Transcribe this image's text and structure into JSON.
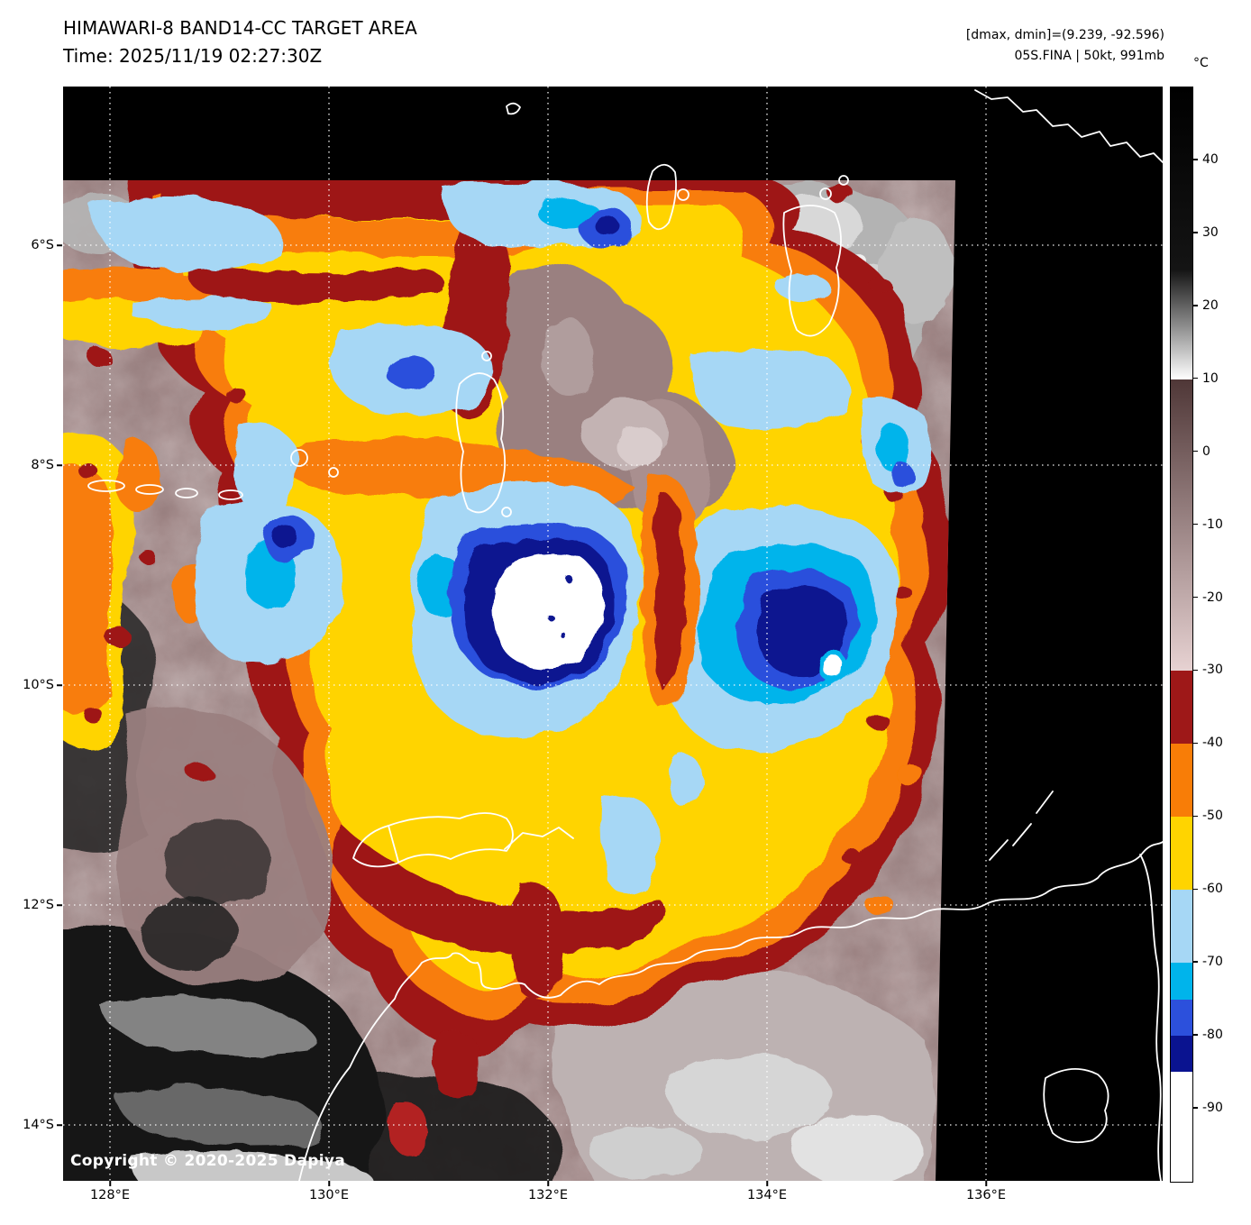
{
  "header": {
    "title": "HIMAWARI-8 BAND14-CC TARGET AREA",
    "time_line": "Time: 2025/11/19 02:27:30Z",
    "dminmax_line": "[dmax, dmin]=(9.239, -92.596)",
    "storm_line": "05S.FINA | 50kt, 991mb"
  },
  "colorbar": {
    "unit_label": "°C",
    "value_range": [
      50,
      -100
    ],
    "tick_labels": [
      "40",
      "30",
      "20",
      "10",
      "0",
      "-10",
      "-20",
      "-30",
      "-40",
      "-50",
      "-60",
      "-70",
      "-80",
      "-90"
    ],
    "segments": [
      {
        "from": 50,
        "to": 25,
        "color_top": "#000000",
        "color_bottom": "#141414"
      },
      {
        "from": 25,
        "to": 10,
        "color_top": "#141414",
        "color_bottom": "#ffffff"
      },
      {
        "from": 10,
        "to": -30,
        "color_top": "#4f3737",
        "color_bottom": "#e7d2d2"
      },
      {
        "from": -30,
        "to": -40,
        "color": "#9e1818"
      },
      {
        "from": -40,
        "to": -50,
        "color": "#f87d07"
      },
      {
        "from": -50,
        "to": -60,
        "color": "#ffd400"
      },
      {
        "from": -60,
        "to": -70,
        "color": "#a6d7f5"
      },
      {
        "from": -70,
        "to": -75,
        "color": "#00b4eb"
      },
      {
        "from": -75,
        "to": -80,
        "color": "#2c50dc"
      },
      {
        "from": -80,
        "to": -85,
        "color": "#0a1390"
      },
      {
        "from": -85,
        "to": -100,
        "color": "#ffffff"
      }
    ]
  },
  "map": {
    "lat_tick_labels": [
      "6°S",
      "8°S",
      "10°S",
      "12°S",
      "14°S"
    ],
    "lon_tick_labels": [
      "128°E",
      "130°E",
      "132°E",
      "134°E",
      "136°E"
    ],
    "copyright": "Copyright © 2020-2025 Dapiya"
  }
}
